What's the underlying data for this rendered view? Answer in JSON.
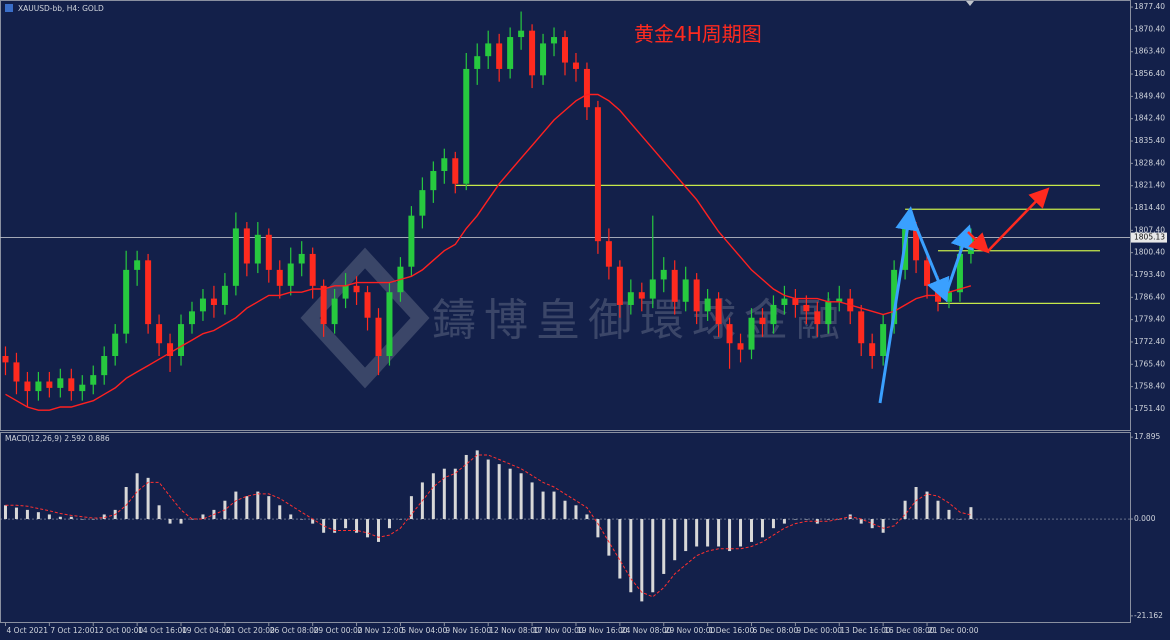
{
  "chart_data": [
    {
      "type": "candlestick",
      "title": "XAUUSD-bb, H4: GOLD",
      "annotation": "黄金4H周期图",
      "watermark": "鑄博皇御環球金融",
      "up_color": "#27c93f",
      "down_color": "#ff2a1f",
      "x": [
        0,
        1,
        2,
        3,
        4,
        5,
        6,
        7,
        8,
        9,
        10,
        11,
        12,
        13,
        14,
        15,
        16,
        17,
        18,
        19,
        20,
        21,
        22,
        23,
        24,
        25,
        26,
        27,
        28,
        29,
        30,
        31,
        32,
        33,
        34,
        35,
        36,
        37,
        38,
        39,
        40,
        41,
        42,
        43,
        44,
        45,
        46,
        47,
        48,
        49,
        50,
        51,
        52,
        53,
        54,
        55,
        56,
        57,
        58,
        59,
        60,
        61,
        62,
        63,
        64,
        65,
        66,
        67,
        68,
        69,
        70,
        71,
        72,
        73,
        74,
        75,
        76,
        77,
        78,
        79,
        80,
        81,
        82,
        83,
        84,
        85,
        86,
        87,
        88
      ],
      "open": [
        1768,
        1766,
        1760,
        1757,
        1760,
        1758,
        1761,
        1757,
        1759,
        1762,
        1768,
        1775,
        1795,
        1798,
        1778,
        1772,
        1768,
        1778,
        1782,
        1786,
        1784,
        1790,
        1808,
        1797,
        1806,
        1795,
        1790,
        1797,
        1800,
        1790,
        1778,
        1786,
        1790,
        1788,
        1780,
        1768,
        1788,
        1796,
        1812,
        1820,
        1826,
        1830,
        1822,
        1858,
        1862,
        1866,
        1858,
        1868,
        1870,
        1856,
        1866,
        1868,
        1860,
        1858,
        1846,
        1804,
        1796,
        1784,
        1788,
        1786,
        1792,
        1795,
        1785,
        1792,
        1782,
        1786,
        1778,
        1772,
        1770,
        1780,
        1778,
        1784,
        1786,
        1784,
        1782,
        1778,
        1785,
        1786,
        1782,
        1772,
        1768,
        1778,
        1795,
        1808,
        1798,
        1790,
        1785,
        1788,
        1800
      ],
      "high": [
        1771,
        1769,
        1763,
        1763,
        1763,
        1764,
        1764,
        1762,
        1765,
        1771,
        1778,
        1801,
        1801,
        1800,
        1781,
        1775,
        1781,
        1785,
        1789,
        1790,
        1794,
        1813,
        1810,
        1810,
        1808,
        1798,
        1802,
        1804,
        1802,
        1792,
        1789,
        1794,
        1793,
        1790,
        1783,
        1791,
        1799,
        1815,
        1824,
        1829,
        1833,
        1832,
        1863,
        1866,
        1870,
        1869,
        1871,
        1876,
        1872,
        1869,
        1871,
        1870,
        1863,
        1860,
        1848,
        1808,
        1798,
        1792,
        1791,
        1812,
        1799,
        1798,
        1796,
        1794,
        1789,
        1788,
        1780,
        1775,
        1783,
        1783,
        1787,
        1790,
        1789,
        1787,
        1785,
        1788,
        1790,
        1789,
        1784,
        1775,
        1781,
        1798,
        1812,
        1810,
        1800,
        1793,
        1791,
        1803,
        1808
      ],
      "low": [
        1762,
        1756,
        1752,
        1754,
        1755,
        1755,
        1754,
        1754,
        1756,
        1759,
        1765,
        1772,
        1790,
        1775,
        1768,
        1763,
        1765,
        1775,
        1779,
        1780,
        1781,
        1787,
        1793,
        1794,
        1791,
        1786,
        1787,
        1793,
        1786,
        1774,
        1775,
        1783,
        1784,
        1776,
        1762,
        1765,
        1785,
        1793,
        1808,
        1816,
        1822,
        1819,
        1820,
        1853,
        1858,
        1854,
        1855,
        1864,
        1852,
        1853,
        1862,
        1856,
        1854,
        1842,
        1800,
        1792,
        1780,
        1781,
        1782,
        1783,
        1788,
        1781,
        1782,
        1778,
        1779,
        1774,
        1764,
        1766,
        1767,
        1774,
        1775,
        1781,
        1780,
        1778,
        1774,
        1775,
        1782,
        1778,
        1768,
        1764,
        1765,
        1775,
        1792,
        1794,
        1786,
        1782,
        1783,
        1785,
        1797
      ],
      "close": [
        1766,
        1760,
        1757,
        1760,
        1758,
        1761,
        1757,
        1759,
        1762,
        1768,
        1775,
        1795,
        1798,
        1778,
        1772,
        1768,
        1778,
        1782,
        1786,
        1784,
        1790,
        1808,
        1797,
        1806,
        1795,
        1790,
        1797,
        1800,
        1790,
        1778,
        1786,
        1790,
        1788,
        1780,
        1768,
        1788,
        1796,
        1812,
        1820,
        1826,
        1830,
        1822,
        1858,
        1862,
        1866,
        1858,
        1868,
        1870,
        1856,
        1866,
        1868,
        1860,
        1858,
        1846,
        1804,
        1796,
        1784,
        1788,
        1786,
        1792,
        1795,
        1785,
        1792,
        1782,
        1786,
        1778,
        1772,
        1770,
        1780,
        1778,
        1784,
        1786,
        1784,
        1782,
        1778,
        1785,
        1786,
        1782,
        1772,
        1768,
        1778,
        1795,
        1808,
        1798,
        1790,
        1785,
        1788,
        1800,
        1805.13
      ],
      "ma": {
        "color": "#ff2020",
        "values": [
          1756,
          1754,
          1752,
          1751,
          1751,
          1752,
          1752,
          1753,
          1754,
          1756,
          1758,
          1761,
          1763,
          1765,
          1767,
          1769,
          1771,
          1773,
          1775,
          1776,
          1778,
          1780,
          1783,
          1785,
          1787,
          1787,
          1788,
          1788,
          1789,
          1789,
          1790,
          1790,
          1791,
          1791,
          1791,
          1791,
          1792,
          1793,
          1795,
          1798,
          1801,
          1803,
          1808,
          1812,
          1817,
          1822,
          1826,
          1830,
          1834,
          1838,
          1842,
          1845,
          1848,
          1850,
          1850,
          1848,
          1845,
          1841,
          1837,
          1833,
          1829,
          1825,
          1821,
          1817,
          1812,
          1807,
          1803,
          1799,
          1795,
          1792,
          1789,
          1787,
          1786,
          1786,
          1786,
          1785,
          1785,
          1784,
          1783,
          1782,
          1781,
          1782,
          1784,
          1786,
          1787,
          1787,
          1788,
          1789,
          1790
        ]
      },
      "levels": [
        {
          "value": 1821.5,
          "from": 41
        },
        {
          "value": 1814,
          "from": 82
        },
        {
          "value": 1801,
          "from": 85
        },
        {
          "value": 1784.5,
          "from": 85
        }
      ],
      "level_color": "#c6e84a",
      "current_price": 1805.13,
      "xlim": [
        -0.5,
        102.5
      ],
      "xticks": [
        {
          "value": 0,
          "label": "4 Oct 2021"
        },
        {
          "value": 4,
          "label": "7 Oct 12:00"
        },
        {
          "value": 8,
          "label": "12 Oct 00:00"
        },
        {
          "value": 12,
          "label": "14 Oct 16:00"
        },
        {
          "value": 16,
          "label": "19 Oct 04:00"
        },
        {
          "value": 20,
          "label": "21 Oct 20:00"
        },
        {
          "value": 24,
          "label": "26 Oct 08:00"
        },
        {
          "value": 28,
          "label": "29 Oct 00:00"
        },
        {
          "value": 32,
          "label": "2 Nov 12:00"
        },
        {
          "value": 36,
          "label": "5 Nov 04:00"
        },
        {
          "value": 40,
          "label": "9 Nov 16:00"
        },
        {
          "value": 44,
          "label": "12 Nov 08:00"
        },
        {
          "value": 48,
          "label": "17 Nov 00:00"
        },
        {
          "value": 52,
          "label": "19 Nov 16:00"
        },
        {
          "value": 56,
          "label": "24 Nov 08:00"
        },
        {
          "value": 60,
          "label": "29 Nov 00:00"
        },
        {
          "value": 64,
          "label": "1 Dec 16:00"
        },
        {
          "value": 68,
          "label": "6 Dec 08:00"
        },
        {
          "value": 72,
          "label": "9 Dec 00:00"
        },
        {
          "value": 76,
          "label": "13 Dec 16:00"
        },
        {
          "value": 80,
          "label": "16 Dec 08:00"
        },
        {
          "value": 84,
          "label": "21 Dec 00:00"
        }
      ],
      "ylim": [
        1744.8,
        1879.3
      ],
      "yticks": [
        {
          "value": 1877.4,
          "label": "1877.40"
        },
        {
          "value": 1870.4,
          "label": "1870.40"
        },
        {
          "value": 1863.4,
          "label": "1863.40"
        },
        {
          "value": 1856.4,
          "label": "1856.40"
        },
        {
          "value": 1849.4,
          "label": "1849.40"
        },
        {
          "value": 1842.4,
          "label": "1842.40"
        },
        {
          "value": 1835.4,
          "label": "1835.40"
        },
        {
          "value": 1828.4,
          "label": "1828.40"
        },
        {
          "value": 1821.4,
          "label": "1821.40"
        },
        {
          "value": 1814.4,
          "label": "1814.40"
        },
        {
          "value": 1807.4,
          "label": "1807.40"
        },
        {
          "value": 1800.4,
          "label": "1800.40"
        },
        {
          "value": 1793.4,
          "label": "1793.40"
        },
        {
          "value": 1786.4,
          "label": "1786.40"
        },
        {
          "value": 1779.4,
          "label": "1779.40"
        },
        {
          "value": 1772.4,
          "label": "1772.40"
        },
        {
          "value": 1765.4,
          "label": "1765.40"
        },
        {
          "value": 1758.4,
          "label": "1758.40"
        },
        {
          "value": 1751.4,
          "label": "1751.40"
        }
      ]
    },
    {
      "type": "macd",
      "title": "MACD(12,26,9) 2.592 0.886",
      "histogram_color": "#d8d8d8",
      "signal_color": "#ff3030",
      "histogram": [
        3,
        2.5,
        2,
        1.5,
        1,
        0.5,
        0.5,
        0,
        0,
        1,
        2,
        7,
        10,
        9,
        3,
        -1,
        -1,
        0,
        1,
        2,
        4,
        6,
        5,
        6,
        5,
        3,
        1,
        0,
        -1,
        -3,
        -3,
        -2,
        -3,
        -4,
        -5,
        -2,
        0,
        5,
        8,
        10,
        11,
        11,
        14,
        15,
        13,
        12,
        11,
        10,
        8,
        6,
        6,
        4,
        3,
        1,
        -4,
        -8,
        -13,
        -16,
        -18,
        -16,
        -12,
        -9,
        -7,
        -6,
        -6,
        -6,
        -7,
        -6,
        -5,
        -4,
        -2,
        -1,
        0,
        0,
        -1,
        0,
        0,
        1,
        -1,
        -2,
        -3,
        0,
        4,
        7,
        6,
        4,
        2,
        0,
        2.592
      ],
      "signal": [
        3,
        3,
        2.8,
        2.3,
        1.8,
        1.2,
        0.8,
        0.5,
        0.2,
        0.3,
        1,
        3,
        6,
        8,
        8,
        5,
        2,
        0,
        0,
        1,
        2,
        4,
        5,
        5.5,
        5.5,
        4.5,
        3,
        1.5,
        0,
        -1.5,
        -2.5,
        -2.5,
        -2.5,
        -3,
        -4,
        -3.5,
        -2,
        1,
        4,
        7,
        9,
        10,
        12,
        14,
        14,
        13,
        12,
        11,
        9.5,
        8,
        7,
        5.5,
        4,
        2.5,
        -1,
        -5,
        -9,
        -13,
        -16,
        -17,
        -15,
        -12,
        -10,
        -8,
        -7,
        -6.5,
        -6.5,
        -6.5,
        -6,
        -5,
        -3.5,
        -2,
        -1,
        -0.5,
        -0.5,
        -0.5,
        0,
        0.5,
        0,
        -1,
        -2,
        -1.5,
        1,
        4,
        5.5,
        5,
        3.5,
        1.5,
        0.886
      ],
      "ylim": [
        -22.5,
        18.8
      ],
      "yticks": [
        17.895,
        {
          "value": 0,
          "label": "0.000"
        },
        -21.162
      ]
    }
  ]
}
